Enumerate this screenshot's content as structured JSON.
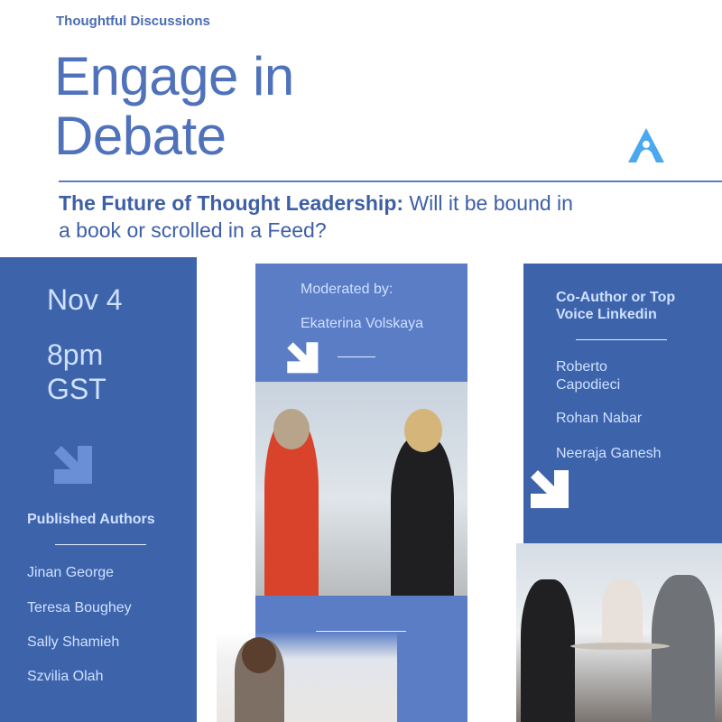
{
  "header": {
    "kicker": "Thoughtful Discussions",
    "title_line1": "Engage in",
    "title_line2": "Debate",
    "subtitle_bold": "The Future of Thought Leadership:",
    "subtitle_rest": " Will it be bound in a book or scrolled in a Feed?"
  },
  "event": {
    "date": "Nov 4",
    "time": "8pm",
    "timezone": "GST"
  },
  "published_authors": {
    "heading": "Published Authors",
    "names": [
      "Jinan George",
      "Teresa Boughey",
      "Sally Shamieh",
      "Szvilia Olah"
    ]
  },
  "moderator": {
    "label": "Moderated by:",
    "name": "Ekaterina Volskaya"
  },
  "co_authors": {
    "heading_line1": "Co-Author or Top",
    "heading_line2": "Voice Linkedin",
    "names": [
      "Roberto Capodieci",
      "Rohan Nabar",
      "Neeraja Ganesh"
    ]
  },
  "icons": {
    "logo": "letter-a-logo",
    "arrow": "arrow-down-right-icon"
  },
  "colors": {
    "primary": "#4f72bb",
    "panel_dark": "#3d64ab",
    "panel_light": "#5a7dc6",
    "logo": "#4aa8ee"
  }
}
